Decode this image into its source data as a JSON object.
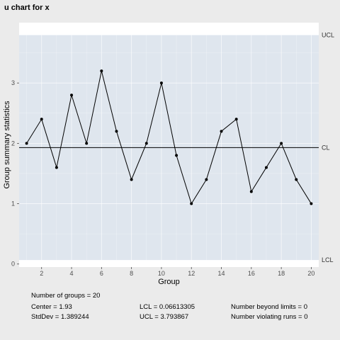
{
  "chart_data": {
    "type": "line",
    "title": "u chart for x",
    "xlabel": "Group",
    "ylabel": "Group summary statistics",
    "x": [
      1,
      2,
      3,
      4,
      5,
      6,
      7,
      8,
      9,
      10,
      11,
      12,
      13,
      14,
      15,
      16,
      17,
      18,
      19,
      20
    ],
    "values": [
      2.0,
      2.4,
      1.6,
      2.8,
      2.0,
      3.2,
      2.2,
      1.4,
      2.0,
      3.0,
      1.8,
      1.0,
      1.4,
      2.2,
      2.4,
      1.2,
      1.6,
      2.0,
      1.4,
      1.0
    ],
    "center": 1.93,
    "lcl": 0.06613305,
    "ucl": 3.793867,
    "xlim": [
      0.5,
      20.5
    ],
    "ylim": [
      -0.05,
      4.0
    ],
    "x_ticks": [
      2,
      4,
      6,
      8,
      10,
      12,
      14,
      16,
      18,
      20
    ],
    "y_ticks": [
      0,
      1,
      2,
      3
    ],
    "limit_labels": {
      "ucl": "UCL",
      "cl": "CL",
      "lcl": "LCL"
    },
    "grid": true,
    "band_color": "#dfe6ee",
    "panel_color": "#ffffff",
    "line_color": "#000000"
  },
  "stats": {
    "n_groups": "Number of groups = 20",
    "center": "Center = 1.93",
    "stddev": "StdDev = 1.389244",
    "lcl": "LCL = 0.06613305",
    "ucl": "UCL = 3.793867",
    "beyond": "Number beyond limits = 0",
    "violating": "Number violating runs = 0"
  }
}
